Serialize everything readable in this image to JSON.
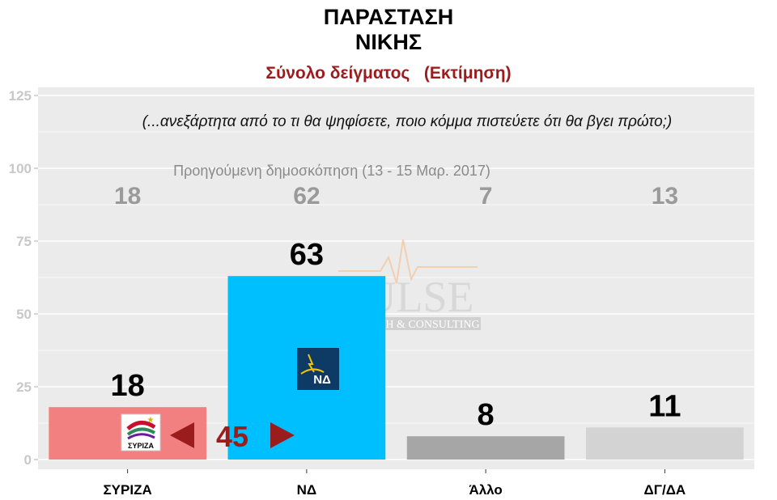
{
  "header": {
    "title_line1": "ΠΑΡΑΣΤΑΣΗ",
    "title_line2": "ΝΙΚΗΣ",
    "subtitle": "Σύνολο δείγματος   (Εκτίμηση)"
  },
  "question": "(...ανεξάρτητα από το τι θα ψηφίσετε, ποιο κόμμα πιστεύετε ότι θα βγει πρώτο;)",
  "previous_poll_label": "Προηγούμενη δημοσκόπηση (13 - 15 Μαρ. 2017)",
  "watermark": {
    "name": "PULSE",
    "tagline": "RESEARCH & CONSULTING"
  },
  "logos": {
    "syriza": "ΣΥΡΙΖΑ",
    "nd": "ΝΔ"
  },
  "lead": {
    "value": 45
  },
  "colors": {
    "panel": "#ebebeb",
    "grid": "#ffffff",
    "syriza": "#f28080",
    "nd": "#00bfff",
    "allo": "#a6a6a6",
    "dgda": "#d3d3d3",
    "accent": "#9b1c1c"
  },
  "chart_data": {
    "type": "bar",
    "categories": [
      "ΣΥΡΙΖΑ",
      "ΝΔ",
      "Άλλο",
      "ΔΓ/ΔΑ"
    ],
    "series": [
      {
        "values": [
          18,
          63,
          8,
          11
        ]
      }
    ],
    "previous_values": [
      18,
      62,
      7,
      13
    ],
    "yticks": [
      0,
      25,
      50,
      75,
      100,
      125
    ],
    "ylim": [
      0,
      125
    ],
    "grid": true
  }
}
